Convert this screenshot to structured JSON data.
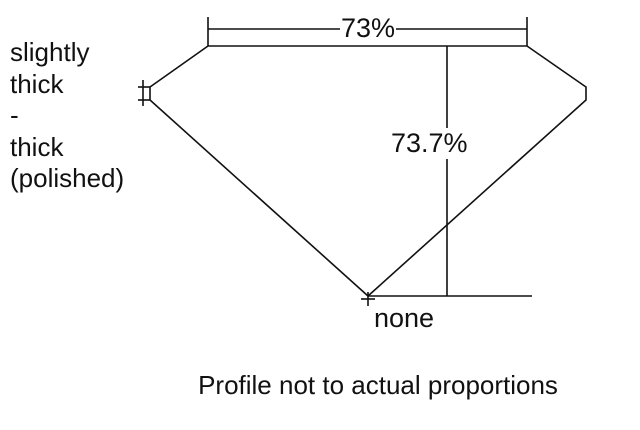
{
  "labels": {
    "table_percent": "73%",
    "depth_percent": "73.7%",
    "culet": "none",
    "girdle_lines": [
      "slightly",
      "thick",
      "-",
      "thick",
      "(polished)"
    ]
  },
  "caption": "Profile not to actual proportions",
  "colors": {
    "line": "#111111",
    "background": "#ffffff"
  }
}
